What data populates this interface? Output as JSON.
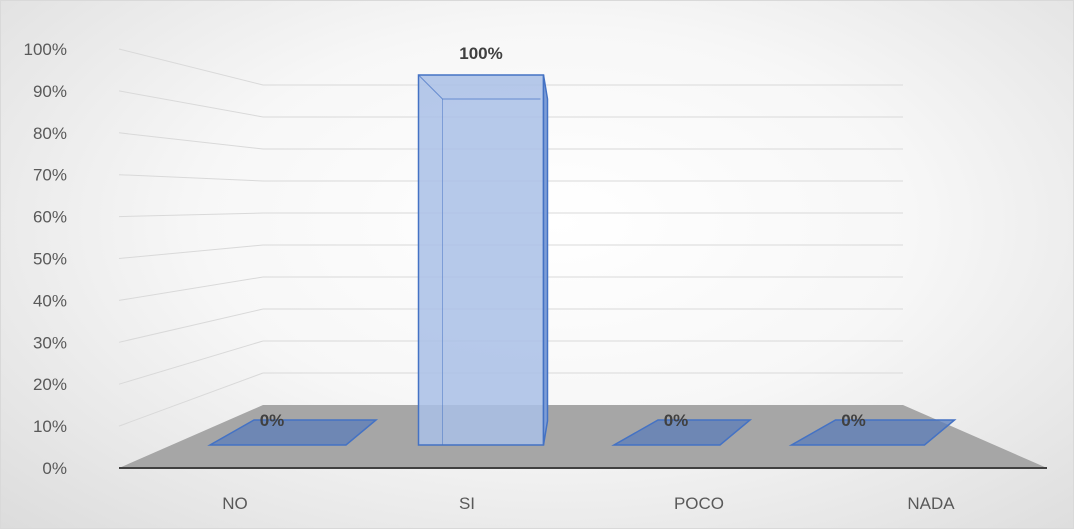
{
  "chart_data": {
    "type": "bar",
    "title": "",
    "xlabel": "",
    "ylabel": "",
    "categories": [
      "NO",
      "SI",
      "POCO",
      "NADA"
    ],
    "values": [
      0,
      1,
      0,
      0
    ],
    "data_labels": [
      "0%",
      "100%",
      "0%",
      "0%"
    ],
    "y_ticks": [
      "0%",
      "10%",
      "20%",
      "30%",
      "40%",
      "50%",
      "60%",
      "70%",
      "80%",
      "90%",
      "100%"
    ],
    "ylim": [
      0,
      1
    ],
    "grid": true,
    "three_d": true,
    "colors": {
      "bar_fill": "#a9bfe6",
      "bar_stroke": "#4472c4",
      "floor": "#a6a6a6",
      "grid": "#d9d9d9",
      "axis_line": "#404040"
    }
  }
}
